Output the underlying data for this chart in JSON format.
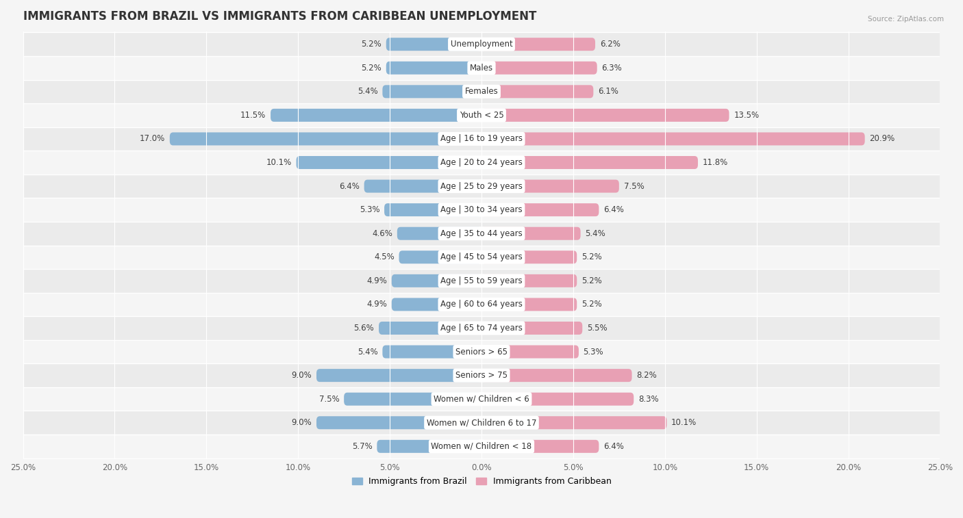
{
  "title": "IMMIGRANTS FROM BRAZIL VS IMMIGRANTS FROM CARIBBEAN UNEMPLOYMENT",
  "source": "Source: ZipAtlas.com",
  "categories": [
    "Unemployment",
    "Males",
    "Females",
    "Youth < 25",
    "Age | 16 to 19 years",
    "Age | 20 to 24 years",
    "Age | 25 to 29 years",
    "Age | 30 to 34 years",
    "Age | 35 to 44 years",
    "Age | 45 to 54 years",
    "Age | 55 to 59 years",
    "Age | 60 to 64 years",
    "Age | 65 to 74 years",
    "Seniors > 65",
    "Seniors > 75",
    "Women w/ Children < 6",
    "Women w/ Children 6 to 17",
    "Women w/ Children < 18"
  ],
  "brazil_values": [
    5.2,
    5.2,
    5.4,
    11.5,
    17.0,
    10.1,
    6.4,
    5.3,
    4.6,
    4.5,
    4.9,
    4.9,
    5.6,
    5.4,
    9.0,
    7.5,
    9.0,
    5.7
  ],
  "caribbean_values": [
    6.2,
    6.3,
    6.1,
    13.5,
    20.9,
    11.8,
    7.5,
    6.4,
    5.4,
    5.2,
    5.2,
    5.2,
    5.5,
    5.3,
    8.2,
    8.3,
    10.1,
    6.4
  ],
  "brazil_color": "#8ab4d4",
  "caribbean_color": "#e8a0b4",
  "brazil_color_dark": "#5a8fbe",
  "caribbean_color_dark": "#d4607a",
  "brazil_label": "Immigrants from Brazil",
  "caribbean_label": "Immigrants from Caribbean",
  "xlim": 25.0,
  "row_colors_odd": "#ebebeb",
  "row_colors_even": "#f5f5f5",
  "bg_color": "#f5f5f5",
  "title_fontsize": 12,
  "label_fontsize": 8.5,
  "value_fontsize": 8.5
}
